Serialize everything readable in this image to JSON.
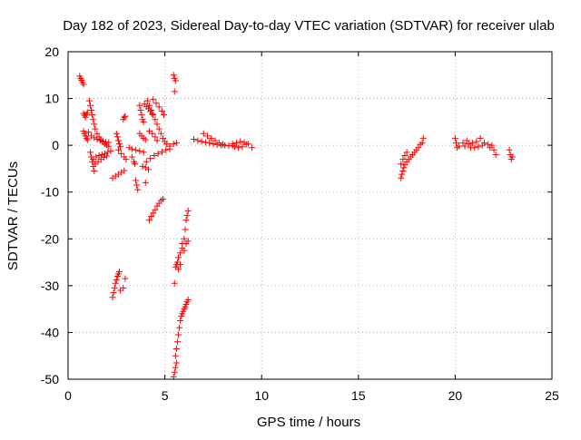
{
  "chart_data": {
    "type": "scatter",
    "title": "Day 182 of 2023, Sidereal Day-to-day VTEC variation (SDTVAR) for receiver ulab",
    "xlabel": "GPS time / hours",
    "ylabel": "SDTVAR / TECUs",
    "xlim": [
      0,
      25
    ],
    "ylim": [
      -50,
      20
    ],
    "xticks": [
      0,
      5,
      10,
      15,
      20,
      25
    ],
    "yticks": [
      -50,
      -40,
      -30,
      -20,
      -10,
      0,
      10,
      20
    ],
    "grid": true,
    "marker": "+",
    "color": "#ff0000",
    "series": [
      {
        "name": "ulab",
        "points": [
          [
            0.6,
            14.8
          ],
          [
            0.65,
            14.3
          ],
          [
            0.7,
            13.9
          ],
          [
            0.75,
            13.4
          ],
          [
            0.8,
            13.0
          ],
          [
            0.8,
            6.8
          ],
          [
            0.85,
            6.4
          ],
          [
            0.9,
            6.0
          ],
          [
            0.95,
            6.6
          ],
          [
            1.0,
            7.0
          ],
          [
            0.8,
            3.0
          ],
          [
            0.85,
            2.5
          ],
          [
            0.9,
            2.0
          ],
          [
            0.95,
            1.5
          ],
          [
            1.0,
            1.2
          ],
          [
            1.05,
            2.8
          ],
          [
            1.1,
            9.5
          ],
          [
            1.15,
            8.5
          ],
          [
            1.2,
            7.5
          ],
          [
            1.25,
            6.5
          ],
          [
            1.3,
            5.5
          ],
          [
            1.35,
            4.5
          ],
          [
            1.4,
            3.5
          ],
          [
            1.5,
            2.5
          ],
          [
            1.6,
            1.8
          ],
          [
            1.7,
            1.2
          ],
          [
            1.8,
            0.7
          ],
          [
            1.9,
            0.3
          ],
          [
            2.0,
            0.0
          ],
          [
            2.1,
            -0.3
          ],
          [
            1.2,
            2.0
          ],
          [
            1.35,
            1.6
          ],
          [
            1.5,
            1.3
          ],
          [
            1.65,
            1.0
          ],
          [
            1.8,
            0.9
          ],
          [
            1.95,
            0.7
          ],
          [
            2.1,
            0.6
          ],
          [
            1.15,
            -1.5
          ],
          [
            1.2,
            -2.5
          ],
          [
            1.25,
            -3.5
          ],
          [
            1.3,
            -4.5
          ],
          [
            1.35,
            -5.5
          ],
          [
            1.3,
            -3.0
          ],
          [
            1.45,
            -2.5
          ],
          [
            1.6,
            -2.2
          ],
          [
            1.75,
            -2.0
          ],
          [
            1.9,
            -1.8
          ],
          [
            2.05,
            -1.5
          ],
          [
            2.2,
            -1.2
          ],
          [
            1.4,
            -4.0
          ],
          [
            1.55,
            -3.5
          ],
          [
            1.7,
            -3.0
          ],
          [
            1.85,
            -2.6
          ],
          [
            2.0,
            -2.3
          ],
          [
            2.3,
            -7.0
          ],
          [
            2.45,
            -6.6
          ],
          [
            2.6,
            -6.2
          ],
          [
            2.75,
            -5.8
          ],
          [
            2.9,
            -5.4
          ],
          [
            2.5,
            2.5
          ],
          [
            2.55,
            1.8
          ],
          [
            2.6,
            1.0
          ],
          [
            2.65,
            0.3
          ],
          [
            2.7,
            -0.3
          ],
          [
            2.6,
            -1.0
          ],
          [
            2.75,
            -1.8
          ],
          [
            2.9,
            -2.5
          ],
          [
            3.0,
            -3.0
          ],
          [
            2.85,
            5.5
          ],
          [
            2.9,
            6.0
          ],
          [
            2.95,
            6.2
          ],
          [
            3.15,
            -0.5
          ],
          [
            3.3,
            -0.8
          ],
          [
            3.5,
            -1.0
          ],
          [
            3.7,
            -1.2
          ],
          [
            3.9,
            -1.5
          ],
          [
            3.3,
            -2.5
          ],
          [
            3.4,
            -3.5
          ],
          [
            3.45,
            -4.0
          ],
          [
            3.5,
            -7.5
          ],
          [
            3.55,
            -8.5
          ],
          [
            3.6,
            -9.5
          ],
          [
            3.7,
            2.5
          ],
          [
            3.8,
            2.0
          ],
          [
            3.9,
            1.5
          ],
          [
            4.0,
            1.2
          ],
          [
            3.85,
            -4.5
          ],
          [
            4.0,
            -4.8
          ],
          [
            4.15,
            -5.2
          ],
          [
            4.05,
            -3.5
          ],
          [
            4.25,
            -2.8
          ],
          [
            4.45,
            -2.2
          ],
          [
            4.65,
            -1.8
          ],
          [
            4.85,
            -1.4
          ],
          [
            5.05,
            -1.0
          ],
          [
            5.25,
            -0.8
          ],
          [
            3.7,
            8.5
          ],
          [
            3.75,
            7.5
          ],
          [
            3.8,
            6.5
          ],
          [
            3.85,
            5.5
          ],
          [
            3.9,
            5.0
          ],
          [
            3.95,
            8.8
          ],
          [
            4.05,
            8.3
          ],
          [
            4.15,
            7.8
          ],
          [
            4.25,
            7.2
          ],
          [
            4.35,
            6.7
          ],
          [
            4.1,
            9.5
          ],
          [
            4.2,
            8.5
          ],
          [
            4.3,
            7.5
          ],
          [
            4.4,
            6.5
          ],
          [
            4.5,
            5.5
          ],
          [
            4.6,
            4.5
          ],
          [
            4.7,
            3.5
          ],
          [
            4.8,
            2.5
          ],
          [
            4.9,
            1.5
          ],
          [
            5.0,
            0.8
          ],
          [
            5.1,
            0.3
          ],
          [
            5.25,
            -0.2
          ],
          [
            5.45,
            0.3
          ],
          [
            5.6,
            0.5
          ],
          [
            4.4,
            9.8
          ],
          [
            4.55,
            9.0
          ],
          [
            4.7,
            8.2
          ],
          [
            4.85,
            7.3
          ],
          [
            4.95,
            6.5
          ],
          [
            4.2,
            3.0
          ],
          [
            4.35,
            2.5
          ],
          [
            4.5,
            1.8
          ],
          [
            4.6,
            1.0
          ],
          [
            4.0,
            -8.0
          ],
          [
            4.2,
            -16.0
          ],
          [
            4.3,
            -15.2
          ],
          [
            4.4,
            -14.5
          ],
          [
            4.5,
            -13.8
          ],
          [
            4.6,
            -13.0
          ],
          [
            4.7,
            -12.4
          ],
          [
            4.8,
            -11.8
          ],
          [
            4.9,
            -11.5
          ],
          [
            2.3,
            -32.5
          ],
          [
            2.35,
            -31.5
          ],
          [
            2.4,
            -30.5
          ],
          [
            2.45,
            -29.5
          ],
          [
            2.5,
            -28.8
          ],
          [
            2.55,
            -28.0
          ],
          [
            2.6,
            -27.5
          ],
          [
            2.65,
            -27.0
          ],
          [
            2.7,
            -31.0
          ],
          [
            2.85,
            -30.5
          ],
          [
            2.95,
            -28.5
          ],
          [
            5.45,
            15.0
          ],
          [
            5.5,
            14.3
          ],
          [
            5.55,
            13.8
          ],
          [
            5.5,
            11.5
          ],
          [
            5.5,
            -29.5
          ],
          [
            5.45,
            -49.5
          ],
          [
            5.5,
            -48.5
          ],
          [
            5.55,
            -47.5
          ],
          [
            5.6,
            -46.5
          ],
          [
            5.55,
            -26.0
          ],
          [
            5.6,
            -25.5
          ],
          [
            5.65,
            -25.0
          ],
          [
            5.7,
            -24.0
          ],
          [
            5.8,
            -23.0
          ],
          [
            5.9,
            -21.0
          ],
          [
            5.7,
            -26.5
          ],
          [
            5.8,
            -25.5
          ],
          [
            5.9,
            -22.0
          ],
          [
            6.0,
            -20.0
          ],
          [
            6.05,
            -18.0
          ],
          [
            6.1,
            -16.0
          ],
          [
            6.15,
            -15.0
          ],
          [
            6.2,
            -14.0
          ],
          [
            6.0,
            -22.5
          ],
          [
            6.1,
            -21.0
          ],
          [
            6.2,
            -20.5
          ],
          [
            5.55,
            -45.0
          ],
          [
            5.6,
            -43.5
          ],
          [
            5.65,
            -42.0
          ],
          [
            5.7,
            -40.5
          ],
          [
            5.75,
            -39.0
          ],
          [
            5.8,
            -37.5
          ],
          [
            5.85,
            -36.5
          ],
          [
            5.9,
            -36.0
          ],
          [
            5.95,
            -35.5
          ],
          [
            6.0,
            -35.0
          ],
          [
            6.05,
            -34.5
          ],
          [
            6.1,
            -34.0
          ],
          [
            6.15,
            -33.5
          ],
          [
            6.2,
            -33.0
          ],
          [
            6.5,
            1.3
          ],
          [
            6.7,
            1.0
          ],
          [
            6.9,
            0.8
          ],
          [
            7.1,
            0.6
          ],
          [
            7.3,
            0.5
          ],
          [
            7.5,
            0.3
          ],
          [
            7.7,
            0.1
          ],
          [
            7.9,
            0.0
          ],
          [
            8.1,
            0.0
          ],
          [
            8.3,
            -0.1
          ],
          [
            8.5,
            -0.1
          ],
          [
            7.0,
            2.5
          ],
          [
            7.2,
            2.0
          ],
          [
            7.4,
            1.5
          ],
          [
            7.6,
            1.0
          ],
          [
            7.8,
            0.5
          ],
          [
            8.0,
            0.2
          ],
          [
            8.5,
            0.3
          ],
          [
            8.7,
            0.5
          ],
          [
            8.9,
            0.8
          ],
          [
            9.1,
            0.6
          ],
          [
            9.3,
            0.3
          ],
          [
            9.5,
            -0.5
          ],
          [
            8.6,
            -0.3
          ],
          [
            8.8,
            -0.5
          ],
          [
            9.0,
            -0.3
          ],
          [
            9.2,
            0.2
          ],
          [
            17.2,
            -7.0
          ],
          [
            17.25,
            -6.2
          ],
          [
            17.3,
            -5.5
          ],
          [
            17.35,
            -4.8
          ],
          [
            17.4,
            -4.2
          ],
          [
            17.5,
            -3.5
          ],
          [
            17.6,
            -3.0
          ],
          [
            17.7,
            -2.5
          ],
          [
            17.8,
            -2.0
          ],
          [
            17.9,
            -1.5
          ],
          [
            18.0,
            -1.0
          ],
          [
            18.1,
            -0.5
          ],
          [
            18.2,
            0.2
          ],
          [
            18.3,
            0.5
          ],
          [
            18.35,
            1.5
          ],
          [
            17.2,
            -4.0
          ],
          [
            17.3,
            -3.0
          ],
          [
            17.4,
            -2.2
          ],
          [
            17.5,
            -1.5
          ],
          [
            20.0,
            1.5
          ],
          [
            20.05,
            0.5
          ],
          [
            20.1,
            -0.5
          ],
          [
            20.2,
            -0.2
          ],
          [
            20.4,
            0.5
          ],
          [
            20.5,
            -0.2
          ],
          [
            20.6,
            1.0
          ],
          [
            20.7,
            0.3
          ],
          [
            20.8,
            -0.5
          ],
          [
            20.9,
            0.5
          ],
          [
            21.0,
            -0.5
          ],
          [
            21.1,
            0.8
          ],
          [
            21.2,
            -0.3
          ],
          [
            21.3,
            1.5
          ],
          [
            21.4,
            0.0
          ],
          [
            21.5,
            0.5
          ],
          [
            21.7,
            0.2
          ],
          [
            21.8,
            -0.5
          ],
          [
            21.9,
            0.0
          ],
          [
            22.0,
            -1.0
          ],
          [
            22.1,
            -2.0
          ],
          [
            22.8,
            -1.0
          ],
          [
            22.85,
            -2.0
          ],
          [
            22.9,
            -3.0
          ],
          [
            22.95,
            -2.5
          ]
        ]
      }
    ]
  }
}
